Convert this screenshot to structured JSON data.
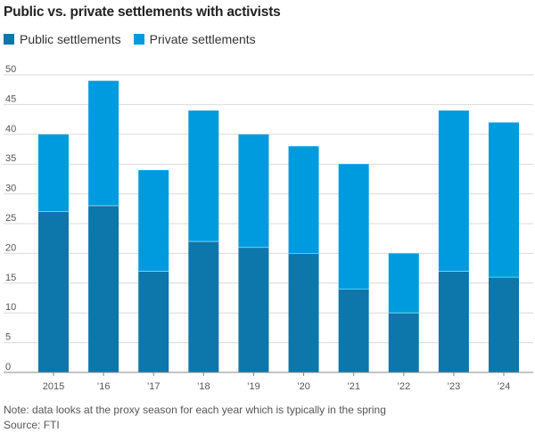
{
  "title": "Public vs. private settlements with activists",
  "legend": [
    {
      "label": "Public settlements",
      "color": "#0d76aa"
    },
    {
      "label": "Private settlements",
      "color": "#009bde"
    }
  ],
  "chart_data": {
    "type": "bar",
    "stacked": true,
    "categories": [
      "2015",
      "’16",
      "’17",
      "’18",
      "’19",
      "’20",
      "’21",
      "’22",
      "’23",
      "’24"
    ],
    "series": [
      {
        "name": "Public settlements",
        "values": [
          27,
          28,
          17,
          22,
          21,
          20,
          14,
          10,
          17,
          16
        ],
        "color": "#0d76aa"
      },
      {
        "name": "Private settlements",
        "values": [
          13,
          21,
          17,
          22,
          19,
          18,
          21,
          10,
          27,
          26
        ],
        "color": "#009bde"
      }
    ],
    "totals": [
      40,
      49,
      34,
      44,
      40,
      38,
      35,
      20,
      44,
      42
    ],
    "ylim": [
      0,
      50
    ],
    "yticks": [
      0,
      5,
      10,
      15,
      20,
      25,
      30,
      35,
      40,
      45,
      50
    ],
    "grid": true,
    "legend_position": "top-left"
  },
  "note": "Note: data looks at the proxy season for each year which is typically in the spring",
  "source": "Source: FTI"
}
